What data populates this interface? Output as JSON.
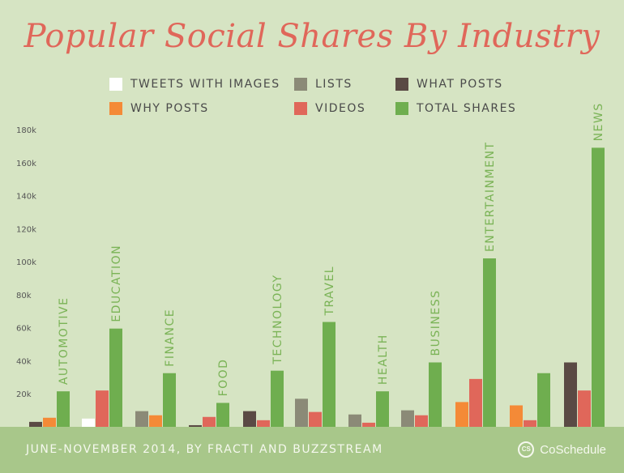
{
  "header": {
    "title": "Popular Social Shares By Industry"
  },
  "footer": {
    "source": "JUNE-NOVEMBER 2014, BY FRACTI AND BUZZSTREAM",
    "brand": "CoSchedule",
    "brand_icon": "coschedule-logo-icon"
  },
  "colors": {
    "background": "#d6e4c3",
    "title": "#e0675a",
    "footer": "#a8c78a",
    "category_label": "#7ab356",
    "axis_text": "#555555"
  },
  "chart_data": {
    "type": "bar",
    "title": "Popular Social Shares By Industry",
    "xlabel": "",
    "ylabel": "",
    "ylim": [
      0,
      180000
    ],
    "yticks": [
      20000,
      40000,
      60000,
      80000,
      100000,
      120000,
      140000,
      160000,
      180000
    ],
    "ytick_labels": [
      "20k",
      "40k",
      "60k",
      "80k",
      "100k",
      "120k",
      "140k",
      "160k",
      "180k"
    ],
    "grid": false,
    "legend_position": "top",
    "categories": [
      "AUTOMOTIVE",
      "EDUCATION",
      "FINANCE",
      "FOOD",
      "TECHNOLOGY",
      "TRAVEL",
      "HEALTH",
      "BUSINESS",
      "ENTERTAINMENT",
      "",
      "NEWS"
    ],
    "series": [
      {
        "name": "TWEETS WITH IMAGES",
        "color": "#ffffff",
        "values": [
          0,
          5000,
          0,
          0,
          0,
          0,
          0,
          0,
          0,
          0,
          0
        ]
      },
      {
        "name": "LISTS",
        "color": "#8b8a77",
        "values": [
          0,
          0,
          9500,
          0,
          0,
          17000,
          7500,
          10000,
          0,
          0,
          0
        ]
      },
      {
        "name": "WHAT POSTS",
        "color": "#5a4a44",
        "values": [
          3000,
          0,
          0,
          1000,
          9500,
          0,
          0,
          0,
          0,
          0,
          39000
        ]
      },
      {
        "name": "WHY POSTS",
        "color": "#f48a37",
        "values": [
          5500,
          0,
          7000,
          0,
          0,
          0,
          0,
          0,
          15000,
          13000,
          0
        ]
      },
      {
        "name": "VIDEOS",
        "color": "#e0675a",
        "values": [
          0,
          22000,
          0,
          6000,
          4000,
          9000,
          2500,
          7000,
          29000,
          4000,
          22000
        ]
      },
      {
        "name": "TOTAL SHARES",
        "color": "#6fae4f",
        "values": [
          21500,
          59500,
          32500,
          14500,
          34000,
          63500,
          21500,
          39000,
          102000,
          32500,
          169000
        ]
      }
    ]
  }
}
